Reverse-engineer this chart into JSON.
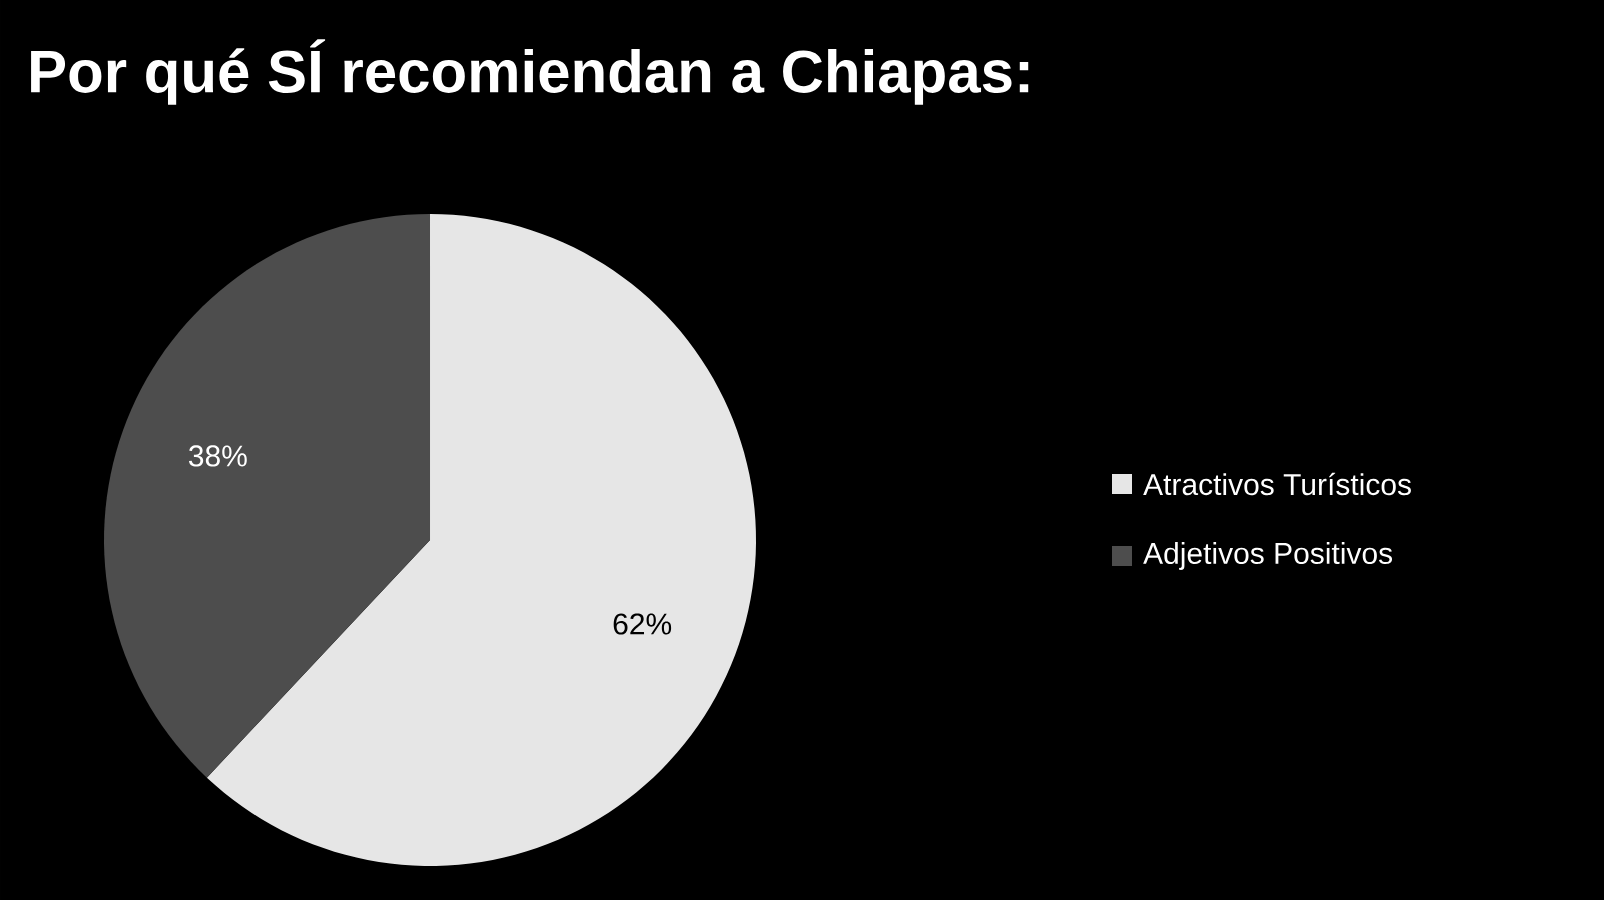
{
  "chart_data": {
    "type": "pie",
    "title": "Por qué SÍ recomiendan a Chiapas:",
    "categories": [
      "Atractivos Turísticos",
      "Adjetivos Positivos"
    ],
    "values": [
      62,
      38
    ],
    "value_labels": [
      "62%",
      "38%"
    ],
    "colors": [
      "#e6e6e6",
      "#4d4d4d"
    ],
    "legend": "right"
  }
}
